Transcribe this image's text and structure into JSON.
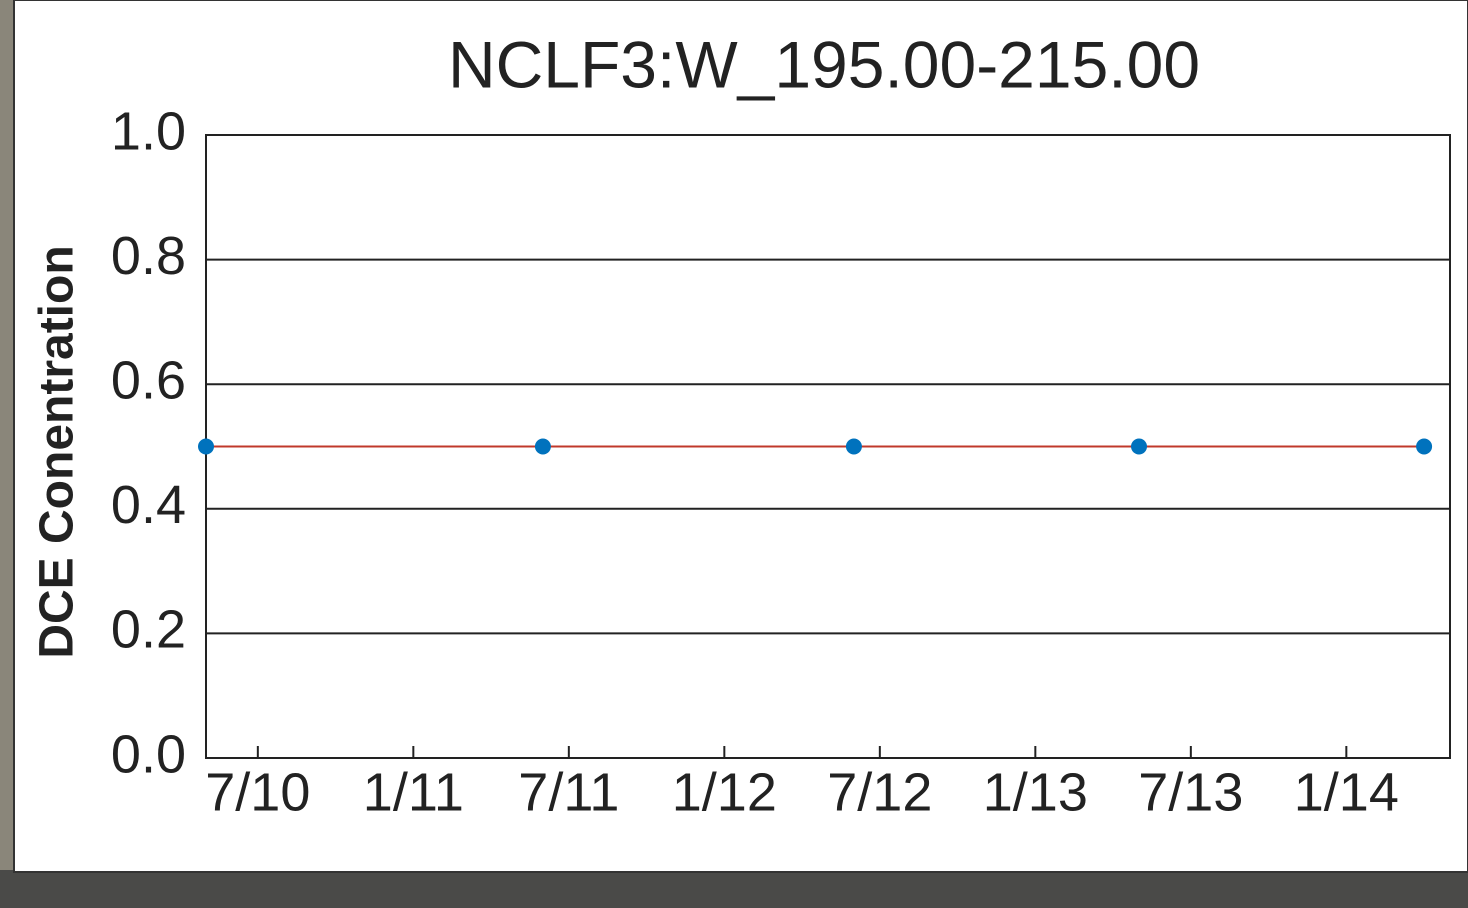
{
  "chart_data": {
    "type": "line",
    "title": "NCLF3:W_195.00-215.00",
    "y_label": "DCE Conentration",
    "x": [
      "2010-05",
      "2011-06",
      "2012-06",
      "2013-05",
      "2014-04"
    ],
    "values": [
      0.5,
      0.5,
      0.5,
      0.5,
      0.5
    ],
    "color": "#0072bd",
    "line_color": "#c0392b",
    "xlim": [
      "2010-05",
      "2014-05"
    ],
    "xticks": [
      {
        "value": "2010-07",
        "label": "7/10"
      },
      {
        "value": "2011-01",
        "label": "1/11"
      },
      {
        "value": "2011-07",
        "label": "7/11"
      },
      {
        "value": "2012-01",
        "label": "1/12"
      },
      {
        "value": "2012-07",
        "label": "7/12"
      },
      {
        "value": "2013-01",
        "label": "1/13"
      },
      {
        "value": "2013-07",
        "label": "7/13"
      },
      {
        "value": "2014-01",
        "label": "1/14"
      }
    ],
    "ylim": [
      0,
      1
    ],
    "yticks": [
      {
        "value": 0,
        "label": "0.0"
      },
      0.2,
      0.4,
      0.6,
      0.8,
      {
        "value": 1,
        "label": "1.0"
      }
    ],
    "grid": true
  }
}
